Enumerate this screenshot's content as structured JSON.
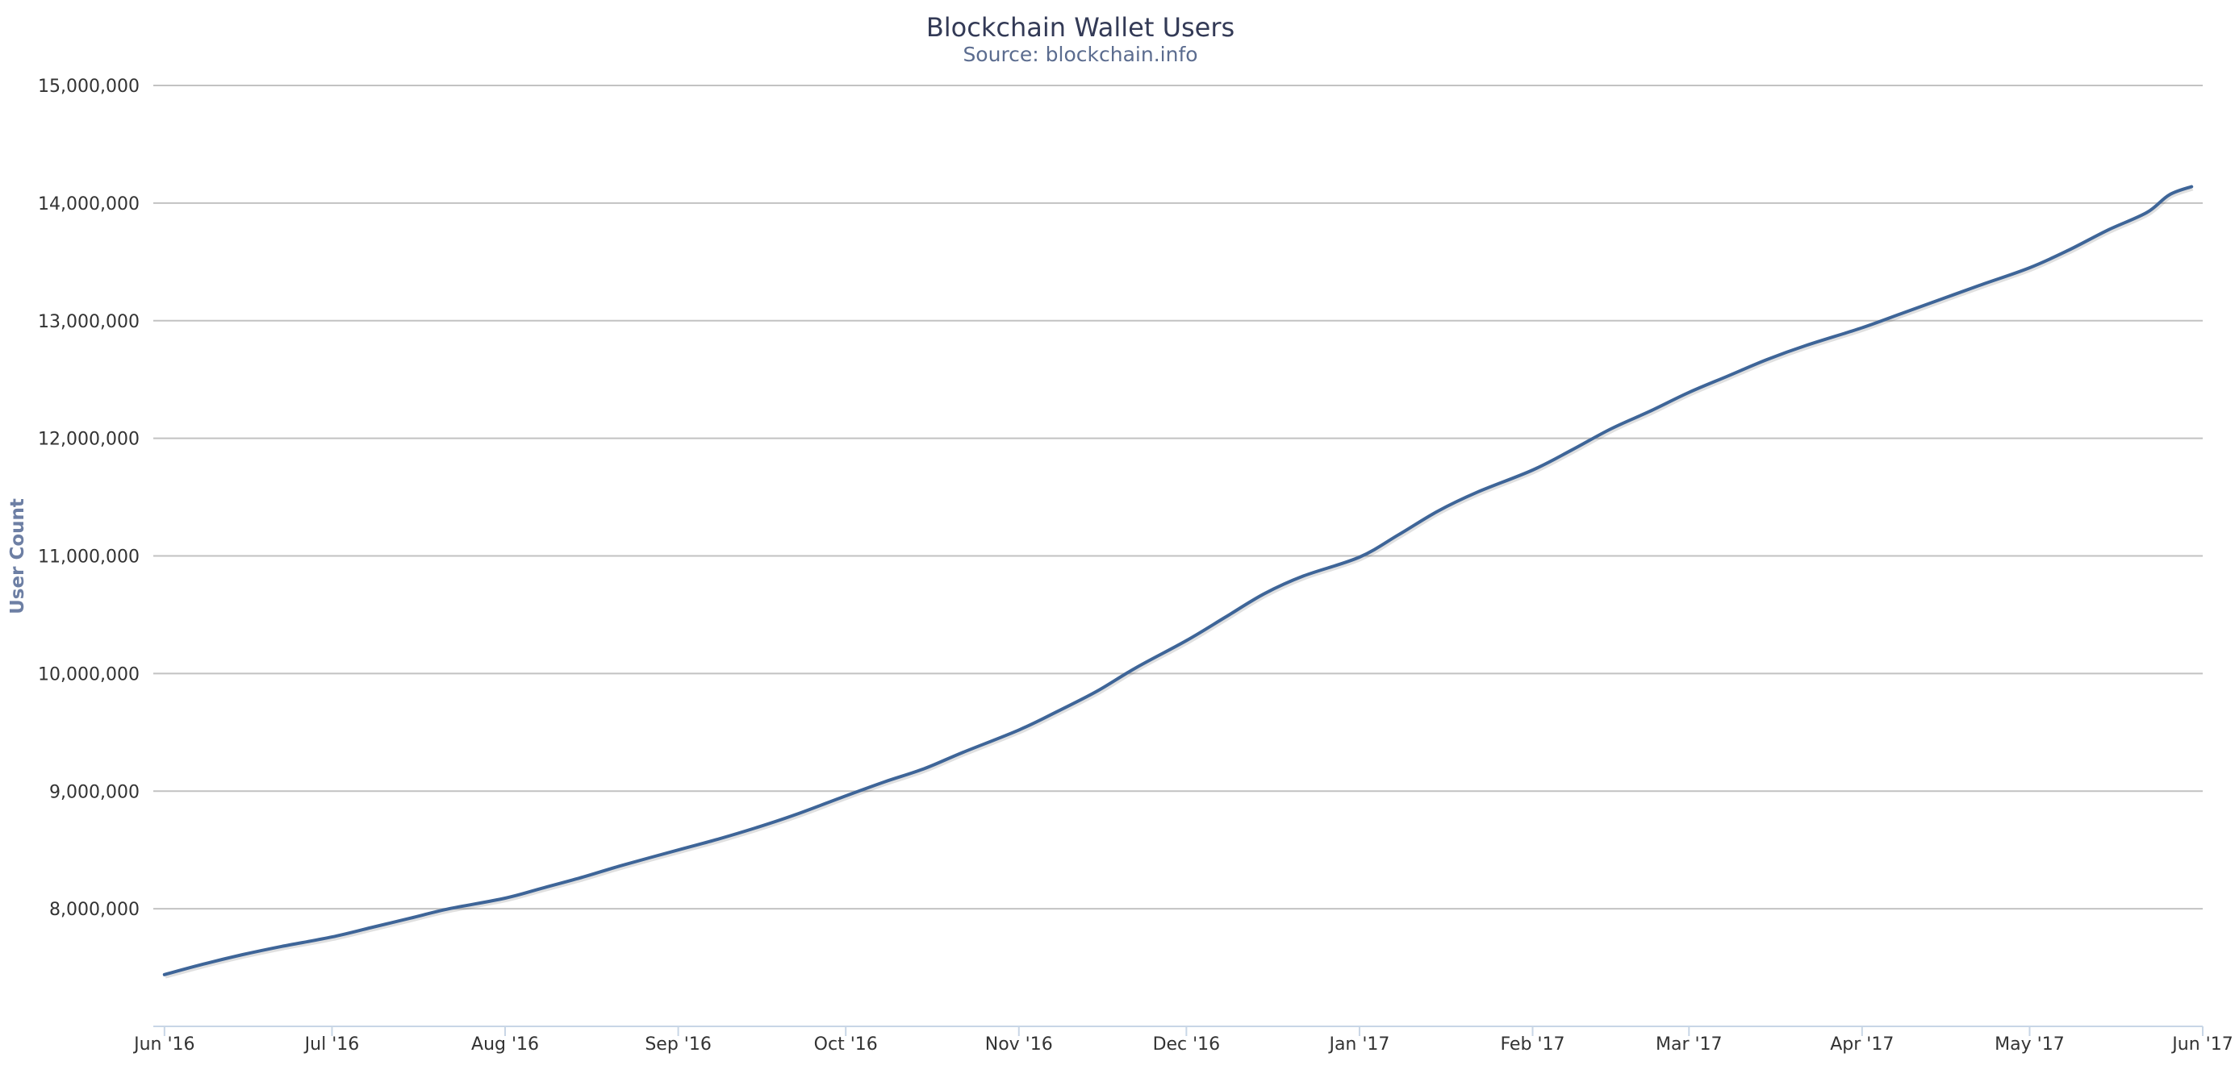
{
  "chart_data": {
    "type": "line",
    "title": "Blockchain Wallet Users",
    "subtitle": "Source: blockchain.info",
    "xlabel": "",
    "ylabel": "User Count",
    "x_ticks": [
      "Jun '16",
      "Jul '16",
      "Aug '16",
      "Sep '16",
      "Oct '16",
      "Nov '16",
      "Dec '16",
      "Jan '17",
      "Feb '17",
      "Mar '17",
      "Apr '17",
      "May '17",
      "Jun '17"
    ],
    "y_ticks": [
      "8,000,000",
      "9,000,000",
      "10,000,000",
      "11,000,000",
      "12,000,000",
      "13,000,000",
      "14,000,000",
      "15,000,000"
    ],
    "ylim": [
      7000000,
      15000000
    ],
    "xlim": [
      "2016-05-30",
      "2017-06-01"
    ],
    "grid": true,
    "legend": "none",
    "colors": {
      "line": "#3e6598",
      "grid": "#c2c2c2",
      "axis": "#c8d6e6"
    },
    "series": [
      {
        "x": [
          "2016-06-01",
          "2016-06-08",
          "2016-06-15",
          "2016-06-22",
          "2016-07-01",
          "2016-07-08",
          "2016-07-15",
          "2016-07-22",
          "2016-08-01",
          "2016-08-08",
          "2016-08-15",
          "2016-08-22",
          "2016-09-01",
          "2016-09-08",
          "2016-09-15",
          "2016-09-22",
          "2016-10-01",
          "2016-10-08",
          "2016-10-15",
          "2016-10-22",
          "2016-11-01",
          "2016-11-08",
          "2016-11-15",
          "2016-11-22",
          "2016-12-01",
          "2016-12-08",
          "2016-12-15",
          "2016-12-22",
          "2017-01-01",
          "2017-01-08",
          "2017-01-15",
          "2017-01-22",
          "2017-02-01",
          "2017-02-08",
          "2017-02-15",
          "2017-02-22",
          "2017-03-01",
          "2017-03-08",
          "2017-03-15",
          "2017-03-22",
          "2017-04-01",
          "2017-04-08",
          "2017-04-15",
          "2017-04-22",
          "2017-05-01",
          "2017-05-08",
          "2017-05-15",
          "2017-05-22",
          "2017-05-26",
          "2017-05-30"
        ],
        "values": [
          7440000,
          7530000,
          7610000,
          7680000,
          7760000,
          7840000,
          7920000,
          8000000,
          8090000,
          8180000,
          8270000,
          8370000,
          8500000,
          8590000,
          8690000,
          8800000,
          8960000,
          9080000,
          9190000,
          9330000,
          9520000,
          9680000,
          9850000,
          10050000,
          10280000,
          10480000,
          10680000,
          10830000,
          10990000,
          11180000,
          11380000,
          11540000,
          11730000,
          11900000,
          12080000,
          12230000,
          12390000,
          12530000,
          12670000,
          12790000,
          12940000,
          13060000,
          13180000,
          13300000,
          13450000,
          13600000,
          13770000,
          13920000,
          14070000,
          14140000
        ]
      }
    ]
  }
}
